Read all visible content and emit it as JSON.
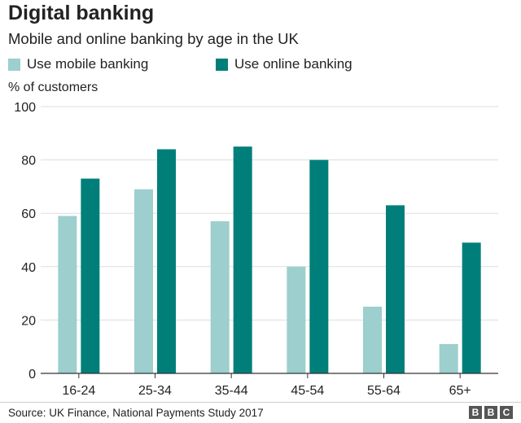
{
  "chart_data": {
    "type": "bar",
    "title": "Digital banking",
    "subtitle": "Mobile and online banking by age in the UK",
    "ylabel": "% of customers",
    "xlabel": "",
    "categories": [
      "16-24",
      "25-34",
      "35-44",
      "45-54",
      "55-64",
      "65+"
    ],
    "series": [
      {
        "name": "Use mobile banking",
        "values": [
          59,
          69,
          57,
          40,
          25,
          11
        ],
        "color": "#9ccfcd"
      },
      {
        "name": "Use online banking",
        "values": [
          73,
          84,
          85,
          80,
          63,
          49
        ],
        "color": "#007f7a"
      }
    ],
    "ylim": [
      0,
      100
    ],
    "yticks": [
      0,
      20,
      40,
      60,
      80,
      100
    ],
    "grid": true,
    "legend_position": "top"
  },
  "footer": {
    "source": "Source: UK Finance, National Payments Study 2017",
    "logo_letters": [
      "B",
      "B",
      "C"
    ]
  }
}
